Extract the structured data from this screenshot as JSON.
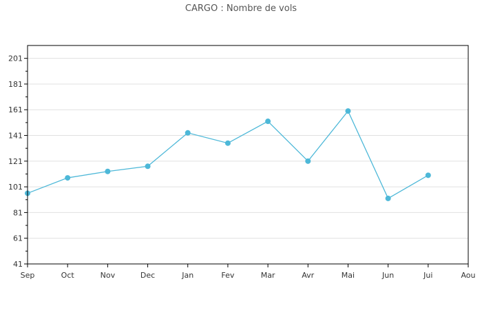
{
  "chart_data": {
    "type": "line",
    "title": "CARGO : Nombre de vols",
    "categories": [
      "Sep",
      "Oct",
      "Nov",
      "Dec",
      "Jan",
      "Fev",
      "Mar",
      "Avr",
      "Mai",
      "Jun",
      "Jui",
      "Aou"
    ],
    "series": [
      {
        "values": [
          96,
          108,
          113,
          117,
          143,
          135,
          152,
          121,
          160,
          92,
          110,
          null
        ]
      }
    ],
    "ylim": [
      41,
      211
    ],
    "yticks": [
      41,
      61,
      81,
      101,
      121,
      141,
      161,
      181,
      201
    ],
    "xlabel": "",
    "ylabel": "",
    "grid": true,
    "colors": {
      "series": "#4db8d8",
      "grid": "#e0e0e0",
      "axis": "#000000"
    }
  }
}
